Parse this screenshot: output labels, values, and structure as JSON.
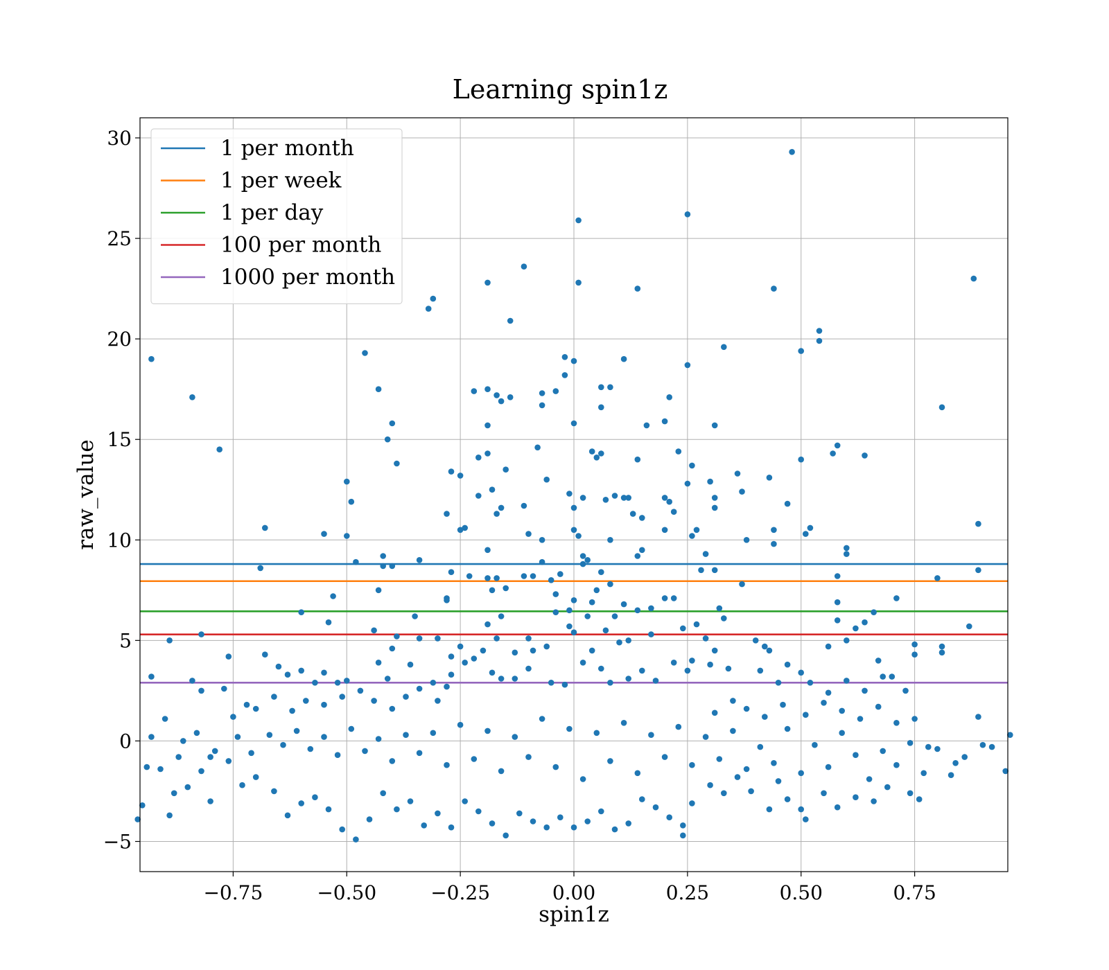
{
  "chart_data": {
    "type": "scatter",
    "title": "Learning spin1z",
    "xlabel": "spin1z",
    "ylabel": "raw_value",
    "xlim": [
      -0.955,
      0.955
    ],
    "ylim": [
      -6.5,
      31.0
    ],
    "xticks": [
      -0.75,
      -0.5,
      -0.25,
      0.0,
      0.25,
      0.5,
      0.75
    ],
    "xtick_labels": [
      "−0.75",
      "−0.50",
      "−0.25",
      "0.00",
      "0.25",
      "0.50",
      "0.75"
    ],
    "yticks": [
      -5,
      0,
      5,
      10,
      15,
      20,
      25,
      30
    ],
    "ytick_labels": [
      "−5",
      "0",
      "5",
      "10",
      "15",
      "20",
      "25",
      "30"
    ],
    "grid": true,
    "legend_position": "upper-left",
    "thresholds": [
      {
        "name": "1 per month",
        "y": 8.8,
        "color": "#1f77b4"
      },
      {
        "name": "1 per week",
        "y": 7.95,
        "color": "#ff7f0e"
      },
      {
        "name": "1 per day",
        "y": 6.45,
        "color": "#2ca02c"
      },
      {
        "name": "100 per month",
        "y": 5.3,
        "color": "#d62728"
      },
      {
        "name": "1000 per month",
        "y": 2.9,
        "color": "#9467bd"
      }
    ],
    "scatter_color": "#1f77b4",
    "points": [
      [
        -0.93,
        19.0
      ],
      [
        -0.84,
        17.1
      ],
      [
        -0.78,
        14.5
      ],
      [
        -0.68,
        10.6
      ],
      [
        -0.69,
        8.6
      ],
      [
        -0.6,
        6.4
      ],
      [
        -0.82,
        5.3
      ],
      [
        -0.89,
        5.0
      ],
      [
        -0.76,
        4.2
      ],
      [
        -0.84,
        3.0
      ],
      [
        -0.93,
        3.2
      ],
      [
        -0.82,
        2.5
      ],
      [
        -0.77,
        2.6
      ],
      [
        -0.87,
        -0.8
      ],
      [
        -0.9,
        1.1
      ],
      [
        -0.93,
        0.2
      ],
      [
        -0.95,
        -3.2
      ],
      [
        -0.96,
        -3.9
      ],
      [
        -0.89,
        -3.7
      ],
      [
        -0.8,
        -3.0
      ],
      [
        -0.55,
        10.3
      ],
      [
        -0.5,
        10.2
      ],
      [
        -0.5,
        12.9
      ],
      [
        -0.49,
        11.9
      ],
      [
        -0.46,
        19.3
      ],
      [
        -0.43,
        17.5
      ],
      [
        -0.41,
        15.0
      ],
      [
        -0.4,
        15.8
      ],
      [
        -0.39,
        13.8
      ],
      [
        -0.48,
        8.9
      ],
      [
        -0.42,
        9.2
      ],
      [
        -0.4,
        8.7
      ],
      [
        -0.42,
        8.7
      ],
      [
        -0.43,
        7.5
      ],
      [
        -0.53,
        7.2
      ],
      [
        -0.54,
        5.9
      ],
      [
        -0.44,
        5.5
      ],
      [
        -0.43,
        3.9
      ],
      [
        -0.4,
        4.6
      ],
      [
        -0.41,
        3.1
      ],
      [
        -0.5,
        3.0
      ],
      [
        -0.52,
        2.9
      ],
      [
        -0.32,
        21.5
      ],
      [
        -0.31,
        22.0
      ],
      [
        -0.19,
        22.8
      ],
      [
        -0.14,
        20.9
      ],
      [
        -0.11,
        23.6
      ],
      [
        -0.22,
        17.4
      ],
      [
        -0.19,
        17.5
      ],
      [
        -0.17,
        17.2
      ],
      [
        -0.16,
        16.9
      ],
      [
        -0.14,
        17.1
      ],
      [
        -0.19,
        15.7
      ],
      [
        -0.21,
        14.1
      ],
      [
        -0.19,
        14.3
      ],
      [
        -0.27,
        13.4
      ],
      [
        -0.25,
        13.2
      ],
      [
        -0.15,
        13.5
      ],
      [
        -0.08,
        14.6
      ],
      [
        -0.07,
        17.3
      ],
      [
        -0.07,
        16.7
      ],
      [
        -0.04,
        17.4
      ],
      [
        -0.02,
        19.1
      ],
      [
        0.0,
        18.9
      ],
      [
        -0.02,
        18.2
      ],
      [
        0.01,
        25.9
      ],
      [
        0.01,
        22.8
      ],
      [
        0.0,
        15.8
      ],
      [
        0.04,
        14.4
      ],
      [
        0.06,
        17.6
      ],
      [
        0.08,
        17.6
      ],
      [
        0.06,
        16.6
      ],
      [
        0.06,
        14.3
      ],
      [
        0.05,
        14.1
      ],
      [
        0.11,
        19.0
      ],
      [
        0.14,
        22.5
      ],
      [
        0.25,
        26.2
      ],
      [
        0.25,
        18.7
      ],
      [
        0.21,
        17.1
      ],
      [
        0.16,
        15.7
      ],
      [
        0.2,
        15.9
      ],
      [
        0.23,
        14.4
      ],
      [
        0.14,
        14.0
      ],
      [
        0.26,
        13.7
      ],
      [
        0.31,
        15.7
      ],
      [
        0.33,
        19.6
      ],
      [
        0.48,
        29.3
      ],
      [
        0.44,
        22.5
      ],
      [
        0.5,
        19.4
      ],
      [
        0.54,
        20.4
      ],
      [
        0.54,
        19.9
      ],
      [
        0.5,
        14.0
      ],
      [
        0.57,
        14.3
      ],
      [
        0.58,
        14.7
      ],
      [
        0.64,
        14.2
      ],
      [
        0.81,
        16.6
      ],
      [
        0.88,
        23.0
      ],
      [
        0.89,
        10.8
      ],
      [
        0.89,
        8.5
      ],
      [
        0.87,
        5.7
      ],
      [
        0.8,
        8.1
      ],
      [
        0.81,
        4.7
      ],
      [
        0.81,
        4.4
      ],
      [
        0.75,
        4.8
      ],
      [
        0.75,
        4.3
      ],
      [
        0.71,
        7.1
      ],
      [
        0.67,
        4.0
      ],
      [
        0.68,
        3.2
      ],
      [
        0.7,
        3.2
      ],
      [
        0.73,
        2.5
      ],
      [
        0.75,
        1.1
      ],
      [
        0.66,
        6.4
      ],
      [
        0.6,
        9.6
      ],
      [
        0.6,
        9.3
      ],
      [
        0.58,
        8.2
      ],
      [
        0.58,
        6.9
      ],
      [
        0.58,
        6.0
      ],
      [
        0.6,
        5.0
      ],
      [
        0.62,
        5.6
      ],
      [
        0.64,
        5.9
      ],
      [
        0.56,
        4.7
      ],
      [
        0.52,
        10.6
      ],
      [
        0.51,
        10.3
      ],
      [
        0.47,
        11.8
      ],
      [
        0.43,
        13.1
      ],
      [
        0.44,
        10.5
      ],
      [
        0.44,
        9.8
      ],
      [
        0.36,
        13.3
      ],
      [
        0.37,
        12.4
      ],
      [
        0.38,
        10.0
      ],
      [
        0.31,
        12.1
      ],
      [
        0.3,
        12.9
      ],
      [
        0.31,
        11.6
      ],
      [
        0.27,
        10.5
      ],
      [
        0.26,
        10.2
      ],
      [
        0.29,
        9.3
      ],
      [
        0.31,
        8.5
      ],
      [
        0.28,
        8.5
      ],
      [
        0.37,
        7.8
      ],
      [
        0.32,
        6.6
      ],
      [
        0.33,
        6.1
      ],
      [
        0.27,
        5.8
      ],
      [
        0.29,
        5.1
      ],
      [
        0.31,
        4.5
      ],
      [
        0.26,
        4.0
      ],
      [
        0.24,
        5.6
      ],
      [
        0.22,
        7.1
      ],
      [
        0.2,
        7.1
      ],
      [
        0.22,
        11.4
      ],
      [
        0.2,
        12.1
      ],
      [
        0.21,
        11.9
      ],
      [
        0.25,
        12.8
      ],
      [
        0.2,
        10.5
      ],
      [
        0.15,
        9.5
      ],
      [
        0.14,
        9.2
      ],
      [
        0.15,
        11.1
      ],
      [
        0.12,
        12.1
      ],
      [
        0.13,
        11.3
      ],
      [
        0.11,
        12.1
      ],
      [
        0.09,
        12.2
      ],
      [
        0.07,
        12.0
      ],
      [
        0.08,
        10.0
      ],
      [
        0.06,
        8.4
      ],
      [
        0.05,
        7.5
      ],
      [
        0.08,
        7.8
      ],
      [
        0.04,
        6.9
      ],
      [
        0.03,
        6.2
      ],
      [
        0.02,
        8.8
      ],
      [
        0.02,
        9.2
      ],
      [
        0.03,
        9.0
      ],
      [
        0.01,
        10.2
      ],
      [
        0.0,
        10.5
      ],
      [
        0.0,
        11.6
      ],
      [
        -0.01,
        12.3
      ],
      [
        0.02,
        12.1
      ],
      [
        -0.06,
        13.0
      ],
      [
        -0.07,
        10.0
      ],
      [
        -0.1,
        10.3
      ],
      [
        -0.11,
        11.7
      ],
      [
        -0.16,
        11.6
      ],
      [
        -0.17,
        11.3
      ],
      [
        -0.18,
        12.5
      ],
      [
        -0.21,
        12.2
      ],
      [
        -0.24,
        10.6
      ],
      [
        -0.28,
        11.3
      ],
      [
        -0.25,
        10.5
      ],
      [
        -0.19,
        9.5
      ],
      [
        -0.17,
        8.1
      ],
      [
        -0.19,
        8.1
      ],
      [
        -0.23,
        8.2
      ],
      [
        -0.27,
        8.4
      ],
      [
        -0.34,
        9.0
      ],
      [
        -0.18,
        7.5
      ],
      [
        -0.15,
        7.6
      ],
      [
        -0.11,
        8.2
      ],
      [
        -0.09,
        8.2
      ],
      [
        -0.07,
        8.9
      ],
      [
        -0.05,
        8.0
      ],
      [
        -0.03,
        8.3
      ],
      [
        -0.04,
        7.3
      ],
      [
        -0.28,
        7.1
      ],
      [
        -0.28,
        7.0
      ],
      [
        -0.35,
        6.2
      ],
      [
        -0.3,
        5.1
      ],
      [
        -0.16,
        6.2
      ],
      [
        -0.19,
        5.8
      ],
      [
        -0.17,
        5.1
      ],
      [
        -0.1,
        5.1
      ],
      [
        -0.09,
        4.5
      ],
      [
        -0.06,
        4.7
      ],
      [
        -0.04,
        6.4
      ],
      [
        -0.01,
        6.5
      ],
      [
        -0.01,
        5.7
      ],
      [
        0.0,
        5.4
      ],
      [
        0.0,
        7.0
      ],
      [
        0.09,
        6.2
      ],
      [
        0.11,
        6.8
      ],
      [
        0.14,
        6.5
      ],
      [
        0.17,
        6.6
      ],
      [
        0.17,
        5.3
      ],
      [
        0.12,
        5.0
      ],
      [
        0.1,
        4.9
      ],
      [
        0.07,
        5.5
      ],
      [
        -0.27,
        4.2
      ],
      [
        -0.25,
        4.7
      ],
      [
        -0.22,
        4.1
      ],
      [
        -0.2,
        4.5
      ],
      [
        -0.13,
        4.4
      ],
      [
        -0.36,
        3.8
      ],
      [
        -0.39,
        5.2
      ],
      [
        -0.34,
        5.1
      ],
      [
        -0.31,
        2.9
      ],
      [
        -0.28,
        2.7
      ],
      [
        -0.27,
        3.3
      ],
      [
        -0.24,
        3.9
      ],
      [
        -0.18,
        3.4
      ],
      [
        -0.16,
        3.1
      ],
      [
        -0.13,
        3.1
      ],
      [
        -0.1,
        3.6
      ],
      [
        -0.05,
        2.9
      ],
      [
        -0.02,
        2.8
      ],
      [
        0.02,
        3.9
      ],
      [
        0.04,
        4.5
      ],
      [
        0.06,
        3.6
      ],
      [
        0.08,
        2.9
      ],
      [
        0.12,
        3.1
      ],
      [
        0.15,
        3.5
      ],
      [
        0.18,
        3.0
      ],
      [
        0.22,
        3.9
      ],
      [
        0.25,
        3.5
      ],
      [
        0.3,
        3.8
      ],
      [
        0.34,
        3.6
      ],
      [
        0.4,
        5.0
      ],
      [
        0.42,
        4.7
      ],
      [
        0.43,
        4.5
      ],
      [
        0.41,
        3.5
      ],
      [
        0.45,
        2.9
      ],
      [
        0.47,
        3.8
      ],
      [
        0.5,
        3.4
      ],
      [
        0.52,
        2.9
      ],
      [
        0.56,
        2.4
      ],
      [
        0.6,
        3.0
      ],
      [
        0.64,
        2.5
      ],
      [
        -0.68,
        4.3
      ],
      [
        -0.65,
        3.7
      ],
      [
        -0.63,
        3.3
      ],
      [
        -0.6,
        3.5
      ],
      [
        -0.57,
        2.9
      ],
      [
        -0.55,
        3.4
      ],
      [
        -0.66,
        2.2
      ],
      [
        -0.7,
        1.6
      ],
      [
        -0.72,
        1.8
      ],
      [
        -0.75,
        1.2
      ],
      [
        -0.62,
        1.5
      ],
      [
        -0.59,
        2.0
      ],
      [
        -0.55,
        1.8
      ],
      [
        -0.51,
        2.2
      ],
      [
        -0.47,
        2.5
      ],
      [
        -0.44,
        2.0
      ],
      [
        -0.4,
        1.6
      ],
      [
        -0.37,
        2.2
      ],
      [
        -0.34,
        2.6
      ],
      [
        -0.3,
        2.0
      ],
      [
        0.31,
        1.4
      ],
      [
        0.35,
        2.0
      ],
      [
        0.38,
        1.6
      ],
      [
        0.42,
        1.2
      ],
      [
        0.46,
        1.8
      ],
      [
        0.51,
        1.3
      ],
      [
        0.55,
        1.9
      ],
      [
        0.59,
        1.5
      ],
      [
        0.63,
        1.1
      ],
      [
        0.67,
        1.7
      ],
      [
        0.71,
        0.9
      ],
      [
        0.89,
        1.2
      ],
      [
        0.9,
        -0.2
      ],
      [
        0.95,
        -1.5
      ],
      [
        0.96,
        0.3
      ],
      [
        0.86,
        -0.8
      ],
      [
        0.83,
        -1.7
      ],
      [
        0.78,
        -0.3
      ],
      [
        0.74,
        -2.6
      ],
      [
        0.76,
        -2.9
      ],
      [
        0.69,
        -2.3
      ],
      [
        0.66,
        -3.0
      ],
      [
        0.62,
        -2.8
      ],
      [
        0.58,
        -3.3
      ],
      [
        0.55,
        -2.6
      ],
      [
        0.51,
        -3.9
      ],
      [
        0.5,
        -3.4
      ],
      [
        0.47,
        -2.9
      ],
      [
        0.45,
        -2.0
      ],
      [
        0.43,
        -3.4
      ],
      [
        0.39,
        -2.5
      ],
      [
        0.36,
        -1.8
      ],
      [
        0.33,
        -2.6
      ],
      [
        0.3,
        -2.2
      ],
      [
        0.26,
        -3.1
      ],
      [
        0.24,
        -4.2
      ],
      [
        0.24,
        -4.7
      ],
      [
        0.21,
        -3.8
      ],
      [
        0.18,
        -3.3
      ],
      [
        0.15,
        -2.9
      ],
      [
        0.12,
        -4.1
      ],
      [
        0.09,
        -4.4
      ],
      [
        0.06,
        -3.5
      ],
      [
        0.03,
        -4.0
      ],
      [
        0.0,
        -4.3
      ],
      [
        -0.03,
        -3.8
      ],
      [
        -0.06,
        -4.3
      ],
      [
        -0.09,
        -4.0
      ],
      [
        -0.12,
        -3.6
      ],
      [
        -0.15,
        -4.7
      ],
      [
        -0.18,
        -4.1
      ],
      [
        -0.21,
        -3.5
      ],
      [
        -0.24,
        -3.0
      ],
      [
        -0.27,
        -4.3
      ],
      [
        -0.3,
        -3.6
      ],
      [
        -0.33,
        -4.2
      ],
      [
        -0.36,
        -3.0
      ],
      [
        -0.39,
        -3.4
      ],
      [
        -0.42,
        -2.6
      ],
      [
        -0.45,
        -3.9
      ],
      [
        -0.48,
        -4.9
      ],
      [
        -0.51,
        -4.4
      ],
      [
        -0.54,
        -3.4
      ],
      [
        -0.57,
        -2.8
      ],
      [
        -0.6,
        -3.1
      ],
      [
        -0.63,
        -3.7
      ],
      [
        -0.66,
        -2.5
      ],
      [
        -0.7,
        -1.8
      ],
      [
        -0.73,
        -2.2
      ],
      [
        -0.76,
        -1.0
      ],
      [
        -0.79,
        -0.5
      ],
      [
        -0.82,
        -1.5
      ],
      [
        -0.85,
        -2.3
      ],
      [
        -0.88,
        -2.6
      ],
      [
        -0.91,
        -1.4
      ],
      [
        -0.94,
        -1.3
      ],
      [
        -0.86,
        0.0
      ],
      [
        -0.83,
        0.4
      ],
      [
        -0.8,
        -0.8
      ],
      [
        -0.74,
        0.2
      ],
      [
        -0.71,
        -0.6
      ],
      [
        -0.67,
        0.3
      ],
      [
        -0.64,
        -0.2
      ],
      [
        -0.61,
        0.5
      ],
      [
        -0.58,
        -0.4
      ],
      [
        -0.55,
        0.2
      ],
      [
        -0.52,
        -0.7
      ],
      [
        -0.49,
        0.6
      ],
      [
        -0.46,
        -0.5
      ],
      [
        -0.43,
        0.1
      ],
      [
        -0.4,
        -1.0
      ],
      [
        -0.37,
        0.3
      ],
      [
        -0.34,
        -0.6
      ],
      [
        -0.31,
        0.4
      ],
      [
        -0.28,
        -1.2
      ],
      [
        -0.25,
        0.8
      ],
      [
        -0.22,
        -0.9
      ],
      [
        -0.19,
        0.5
      ],
      [
        -0.16,
        -1.5
      ],
      [
        -0.13,
        0.2
      ],
      [
        -0.1,
        -0.8
      ],
      [
        -0.07,
        1.1
      ],
      [
        -0.04,
        -1.3
      ],
      [
        -0.01,
        0.6
      ],
      [
        0.02,
        -1.9
      ],
      [
        0.05,
        0.4
      ],
      [
        0.08,
        -1.0
      ],
      [
        0.11,
        0.9
      ],
      [
        0.14,
        -1.6
      ],
      [
        0.17,
        0.3
      ],
      [
        0.2,
        -0.8
      ],
      [
        0.23,
        0.7
      ],
      [
        0.26,
        -1.2
      ],
      [
        0.29,
        0.2
      ],
      [
        0.32,
        -0.9
      ],
      [
        0.35,
        0.5
      ],
      [
        0.38,
        -1.4
      ],
      [
        0.41,
        -0.3
      ],
      [
        0.44,
        -1.1
      ],
      [
        0.47,
        0.6
      ],
      [
        0.5,
        -1.6
      ],
      [
        0.53,
        -0.2
      ],
      [
        0.56,
        -1.3
      ],
      [
        0.59,
        0.4
      ],
      [
        0.62,
        -0.7
      ],
      [
        0.65,
        -1.9
      ],
      [
        0.68,
        -0.5
      ],
      [
        0.71,
        -1.2
      ],
      [
        0.74,
        -0.1
      ],
      [
        0.77,
        -1.6
      ],
      [
        0.8,
        -0.4
      ],
      [
        0.84,
        -1.1
      ],
      [
        0.92,
        -0.3
      ]
    ]
  }
}
